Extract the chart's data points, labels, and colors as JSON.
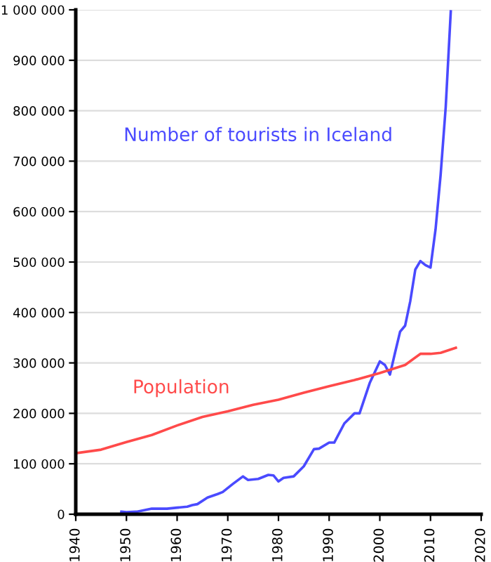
{
  "chart_data": {
    "type": "line",
    "grid": "y",
    "legend": false,
    "xlim": [
      1940,
      2020
    ],
    "xticks": [
      1940,
      1950,
      1960,
      1970,
      1980,
      1990,
      2000,
      2010,
      2020
    ],
    "ylim": [
      0,
      1000000
    ],
    "yticks": [
      0,
      {
        "value": 100000,
        "label": "100 000"
      },
      {
        "value": 200000,
        "label": "200 000"
      },
      {
        "value": 300000,
        "label": "300 000"
      },
      {
        "value": 400000,
        "label": "400 000"
      },
      {
        "value": 500000,
        "label": "500 000"
      },
      {
        "value": 600000,
        "label": "600 000"
      },
      {
        "value": 700000,
        "label": "700 000"
      },
      {
        "value": 800000,
        "label": "800 000"
      },
      {
        "value": 900000,
        "label": "900 000"
      },
      {
        "value": 1000000,
        "label": "1 000 000"
      }
    ],
    "series": [
      {
        "name": "Number of tourists in Iceland",
        "color": "#4a4aff",
        "x": [
          1949,
          1950,
          1952,
          1955,
          1958,
          1960,
          1962,
          1963,
          1964,
          1966,
          1968,
          1969,
          1971,
          1973,
          1974,
          1976,
          1978,
          1979,
          1980,
          1981,
          1983,
          1985,
          1987,
          1988,
          1990,
          1991,
          1993,
          1995,
          1996,
          1998,
          2000,
          2001,
          2002,
          2003,
          2004,
          2005,
          2006,
          2007,
          2008,
          2009,
          2010,
          2011,
          2012,
          2013,
          2014
        ],
        "values": [
          5000,
          4000,
          5000,
          11000,
          11000,
          13000,
          15000,
          18000,
          20000,
          33000,
          40000,
          44000,
          60000,
          75000,
          68000,
          70000,
          78000,
          77000,
          65000,
          72000,
          75000,
          95000,
          129000,
          130000,
          142000,
          142000,
          180000,
          200000,
          200000,
          260000,
          303000,
          296000,
          277000,
          320000,
          362000,
          374000,
          422000,
          485000,
          502000,
          494000,
          489000,
          565000,
          673000,
          807000,
          997000
        ]
      },
      {
        "name": "Population",
        "color": "#ff4a4a",
        "x": [
          1940,
          1945,
          1950,
          1955,
          1960,
          1965,
          1970,
          1975,
          1980,
          1985,
          1990,
          1995,
          2000,
          2005,
          2008,
          2010,
          2012,
          2015
        ],
        "values": [
          121000,
          128000,
          143000,
          157000,
          176000,
          193000,
          204000,
          217000,
          227000,
          241000,
          254000,
          266000,
          280000,
          296000,
          318000,
          318000,
          320000,
          330000
        ]
      }
    ]
  }
}
